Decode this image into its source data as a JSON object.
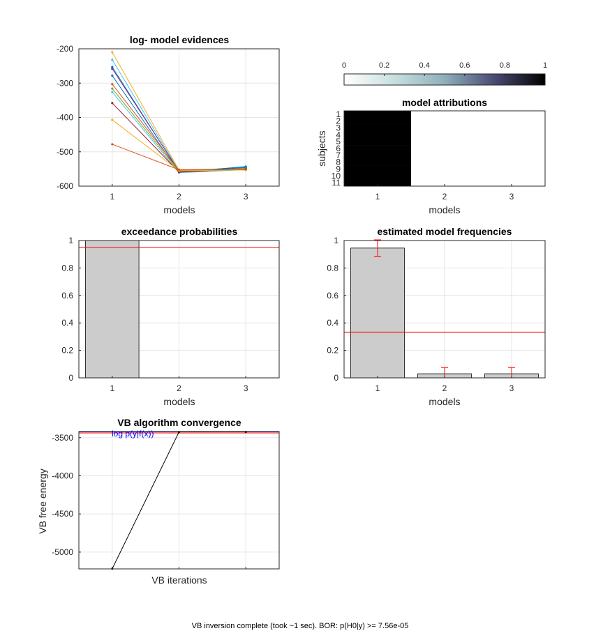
{
  "status_text": "VB inversion complete (took ~1 sec). BOR: p(H0|y) >= 7.56e-05",
  "colors": {
    "bar_fill": "#cccccc",
    "threshold_line": "#ff0000",
    "errorbar": "#ff0000",
    "convergence_line": "#000000",
    "log_evidence_line": "#0000ff",
    "attribution_fill": "#000000"
  },
  "chart_data": [
    {
      "id": "log-model-evidences",
      "type": "line",
      "title": "log- model evidences",
      "xlabel": "models",
      "ylabel": "",
      "x": [
        1,
        2,
        3
      ],
      "xlim": [
        0.5,
        3.5
      ],
      "ylim": [
        -600,
        -200
      ],
      "yticks": [
        -200,
        -300,
        -400,
        -500,
        -600
      ],
      "grid": true,
      "series": [
        {
          "color": "#edb120",
          "values": [
            -210,
            -553,
            -548
          ]
        },
        {
          "color": "#4dbeee",
          "values": [
            -232,
            -556,
            -545
          ]
        },
        {
          "color": "#0072bd",
          "values": [
            -253,
            -558,
            -546
          ]
        },
        {
          "color": "#7e2f8e",
          "values": [
            -258,
            -556,
            -551
          ]
        },
        {
          "color": "#0072bd",
          "values": [
            -278,
            -560,
            -543
          ]
        },
        {
          "color": "#d95319",
          "values": [
            -303,
            -554,
            -550
          ]
        },
        {
          "color": "#77ac30",
          "values": [
            -316,
            -557,
            -549
          ]
        },
        {
          "color": "#4dbeee",
          "values": [
            -326,
            -561,
            -552
          ]
        },
        {
          "color": "#a2142f",
          "values": [
            -358,
            -559,
            -550
          ]
        },
        {
          "color": "#edb120",
          "values": [
            -407,
            -555,
            -553
          ]
        },
        {
          "color": "#d95319",
          "values": [
            -478,
            -552,
            -551
          ]
        }
      ]
    },
    {
      "id": "model-attributions",
      "type": "heatmap",
      "title": "model attributions",
      "xlabel": "models",
      "ylabel": "subjects",
      "x_ticks": [
        "1",
        "2",
        "3"
      ],
      "y_ticks": [
        "1",
        "2",
        "3",
        "4",
        "5",
        "6",
        "7",
        "8",
        "9",
        "10",
        "11"
      ],
      "values": [
        [
          1,
          0,
          0
        ],
        [
          1,
          0,
          0
        ],
        [
          1,
          0,
          0
        ],
        [
          1,
          0,
          0
        ],
        [
          1,
          0,
          0
        ],
        [
          1,
          0,
          0
        ],
        [
          1,
          0,
          0
        ],
        [
          1,
          0,
          0
        ],
        [
          1,
          0,
          0
        ],
        [
          1,
          0,
          0
        ],
        [
          1,
          0,
          0
        ]
      ],
      "colorbar": {
        "ticks": [
          "0",
          "0.2",
          "0.4",
          "0.6",
          "0.8",
          "1"
        ],
        "range": [
          0,
          1
        ]
      }
    },
    {
      "id": "exceedance-probabilities",
      "type": "bar",
      "title": "exceedance probabilities",
      "xlabel": "models",
      "ylabel": "",
      "categories": [
        "1",
        "2",
        "3"
      ],
      "values": [
        1.0,
        0.0,
        0.0
      ],
      "ylim": [
        0,
        1
      ],
      "yticks": [
        "0",
        "0.2",
        "0.4",
        "0.6",
        "0.8",
        "1"
      ],
      "threshold": 0.95,
      "grid": true
    },
    {
      "id": "estimated-model-frequencies",
      "type": "bar",
      "title": "estimated model frequencies",
      "xlabel": "models",
      "ylabel": "",
      "categories": [
        "1",
        "2",
        "3"
      ],
      "values": [
        0.945,
        0.03,
        0.03
      ],
      "errors": [
        0.06,
        0.045,
        0.045
      ],
      "ylim": [
        0,
        1
      ],
      "yticks": [
        "0",
        "0.2",
        "0.4",
        "0.6",
        "0.8",
        "1"
      ],
      "threshold": 0.333,
      "grid": true
    },
    {
      "id": "vb-algorithm-convergence",
      "type": "line",
      "title": "VB algorithm convergence",
      "xlabel": "VB iterations",
      "ylabel": "VB free energy",
      "x": [
        1,
        2,
        3
      ],
      "xlim": [
        0.5,
        3.5
      ],
      "ylim": [
        -5220,
        -3420
      ],
      "yticks": [
        -3500,
        -4000,
        -4500,
        -5000
      ],
      "values": [
        -5218,
        -3425,
        -3425
      ],
      "log_evidence": -3425,
      "legend_label": "log p(y|f(x))",
      "grid": true
    }
  ]
}
